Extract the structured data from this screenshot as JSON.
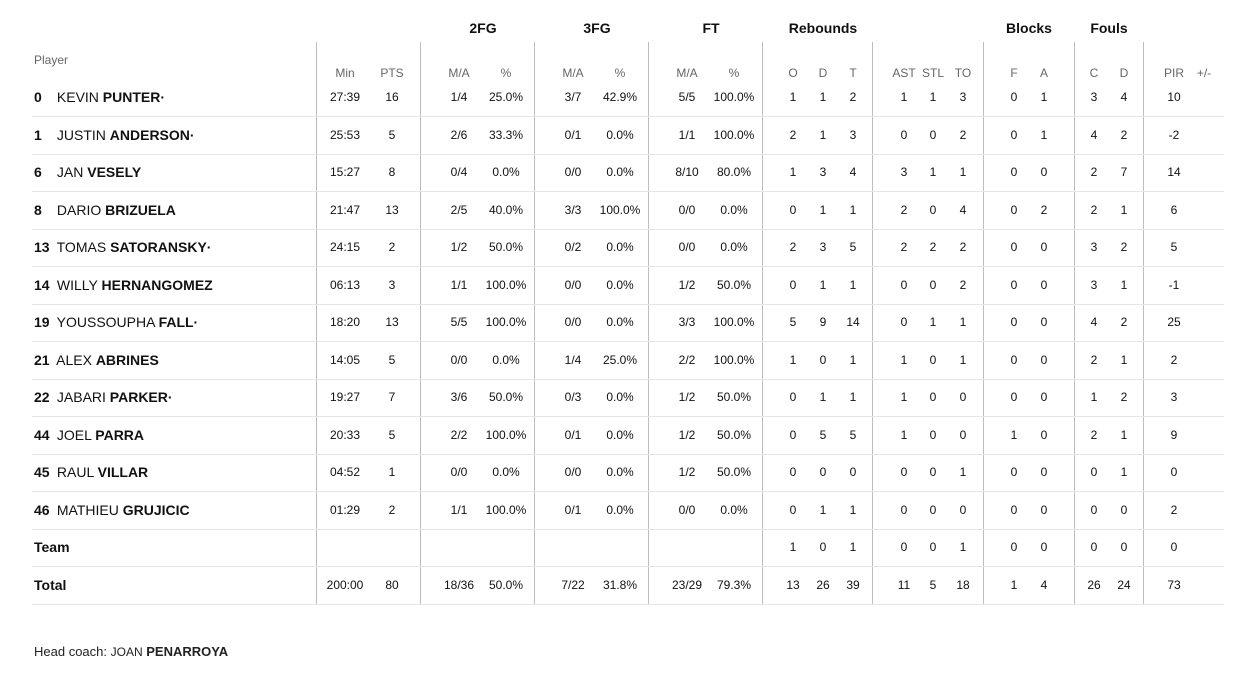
{
  "groups": [
    "2FG",
    "3FG",
    "FT",
    "Rebounds",
    "Blocks",
    "Fouls"
  ],
  "player_header": "Player",
  "subheaders": [
    "Min",
    "PTS",
    "M/A",
    "%",
    "M/A",
    "%",
    "M/A",
    "%",
    "O",
    "D",
    "T",
    "AST",
    "STL",
    "TO",
    "F",
    "A",
    "C",
    "D",
    "PIR",
    "+/-"
  ],
  "rows": [
    {
      "num": "0",
      "first": "KEVIN",
      "last": "PUNTER·",
      "stats": [
        "27:39",
        "16",
        "1/4",
        "25.0%",
        "3/7",
        "42.9%",
        "5/5",
        "100.0%",
        "1",
        "1",
        "2",
        "1",
        "1",
        "3",
        "0",
        "1",
        "3",
        "4",
        "10",
        ""
      ]
    },
    {
      "num": "1",
      "first": "JUSTIN",
      "last": "ANDERSON·",
      "stats": [
        "25:53",
        "5",
        "2/6",
        "33.3%",
        "0/1",
        "0.0%",
        "1/1",
        "100.0%",
        "2",
        "1",
        "3",
        "0",
        "0",
        "2",
        "0",
        "1",
        "4",
        "2",
        "-2",
        ""
      ]
    },
    {
      "num": "6",
      "first": "JAN",
      "last": "VESELY",
      "stats": [
        "15:27",
        "8",
        "0/4",
        "0.0%",
        "0/0",
        "0.0%",
        "8/10",
        "80.0%",
        "1",
        "3",
        "4",
        "3",
        "1",
        "1",
        "0",
        "0",
        "2",
        "7",
        "14",
        ""
      ]
    },
    {
      "num": "8",
      "first": "DARIO",
      "last": "BRIZUELA",
      "stats": [
        "21:47",
        "13",
        "2/5",
        "40.0%",
        "3/3",
        "100.0%",
        "0/0",
        "0.0%",
        "0",
        "1",
        "1",
        "2",
        "0",
        "4",
        "0",
        "2",
        "2",
        "1",
        "6",
        ""
      ]
    },
    {
      "num": "13",
      "first": "TOMAS",
      "last": "SATORANSKY·",
      "stats": [
        "24:15",
        "2",
        "1/2",
        "50.0%",
        "0/2",
        "0.0%",
        "0/0",
        "0.0%",
        "2",
        "3",
        "5",
        "2",
        "2",
        "2",
        "0",
        "0",
        "3",
        "2",
        "5",
        ""
      ]
    },
    {
      "num": "14",
      "first": "WILLY",
      "last": "HERNANGOMEZ",
      "stats": [
        "06:13",
        "3",
        "1/1",
        "100.0%",
        "0/0",
        "0.0%",
        "1/2",
        "50.0%",
        "0",
        "1",
        "1",
        "0",
        "0",
        "2",
        "0",
        "0",
        "3",
        "1",
        "-1",
        ""
      ]
    },
    {
      "num": "19",
      "first": "YOUSSOUPHA",
      "last": "FALL·",
      "stats": [
        "18:20",
        "13",
        "5/5",
        "100.0%",
        "0/0",
        "0.0%",
        "3/3",
        "100.0%",
        "5",
        "9",
        "14",
        "0",
        "1",
        "1",
        "0",
        "0",
        "4",
        "2",
        "25",
        ""
      ]
    },
    {
      "num": "21",
      "first": "ALEX",
      "last": "ABRINES",
      "stats": [
        "14:05",
        "5",
        "0/0",
        "0.0%",
        "1/4",
        "25.0%",
        "2/2",
        "100.0%",
        "1",
        "0",
        "1",
        "1",
        "0",
        "1",
        "0",
        "0",
        "2",
        "1",
        "2",
        ""
      ]
    },
    {
      "num": "22",
      "first": "JABARI",
      "last": "PARKER·",
      "stats": [
        "19:27",
        "7",
        "3/6",
        "50.0%",
        "0/3",
        "0.0%",
        "1/2",
        "50.0%",
        "0",
        "1",
        "1",
        "1",
        "0",
        "0",
        "0",
        "0",
        "1",
        "2",
        "3",
        ""
      ]
    },
    {
      "num": "44",
      "first": "JOEL",
      "last": "PARRA",
      "stats": [
        "20:33",
        "5",
        "2/2",
        "100.0%",
        "0/1",
        "0.0%",
        "1/2",
        "50.0%",
        "0",
        "5",
        "5",
        "1",
        "0",
        "0",
        "1",
        "0",
        "2",
        "1",
        "9",
        ""
      ]
    },
    {
      "num": "45",
      "first": "RAUL",
      "last": "VILLAR",
      "stats": [
        "04:52",
        "1",
        "0/0",
        "0.0%",
        "0/0",
        "0.0%",
        "1/2",
        "50.0%",
        "0",
        "0",
        "0",
        "0",
        "0",
        "1",
        "0",
        "0",
        "0",
        "1",
        "0",
        ""
      ]
    },
    {
      "num": "46",
      "first": "MATHIEU",
      "last": "GRUJICIC",
      "stats": [
        "01:29",
        "2",
        "1/1",
        "100.0%",
        "0/1",
        "0.0%",
        "0/0",
        "0.0%",
        "0",
        "1",
        "1",
        "0",
        "0",
        "0",
        "0",
        "0",
        "0",
        "0",
        "2",
        ""
      ]
    }
  ],
  "team_row": {
    "label": "Team",
    "stats": [
      "",
      "",
      "",
      "",
      "",
      "",
      "",
      "",
      "1",
      "0",
      "1",
      "0",
      "0",
      "1",
      "0",
      "0",
      "0",
      "0",
      "0",
      ""
    ]
  },
  "total_row": {
    "label": "Total",
    "stats": [
      "200:00",
      "80",
      "18/36",
      "50.0%",
      "7/22",
      "31.8%",
      "23/29",
      "79.3%",
      "13",
      "26",
      "39",
      "11",
      "5",
      "18",
      "1",
      "4",
      "26",
      "24",
      "73",
      ""
    ]
  },
  "coach": {
    "label": "Head coach:",
    "first": "JOAN",
    "last": "PENARROYA"
  }
}
